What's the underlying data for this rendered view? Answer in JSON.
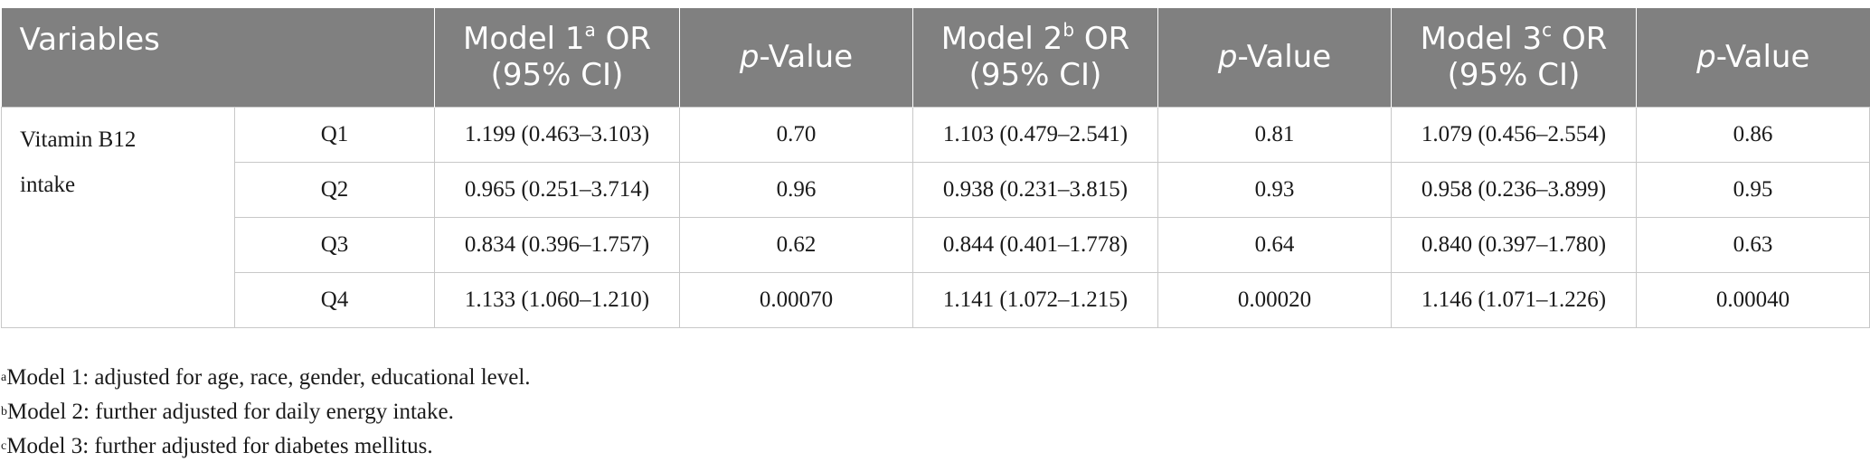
{
  "header": {
    "variables": "Variables",
    "model1": {
      "label": "Model 1",
      "sup": "a",
      "suffix": " OR",
      "ci": "(95% CI)"
    },
    "pvalue_p": "p",
    "pvalue_rest": "-Value",
    "model2": {
      "label": "Model 2",
      "sup": "b",
      "suffix": " OR",
      "ci": "(95% CI)"
    },
    "model3": {
      "label": "Model 3",
      "sup": "c",
      "suffix": " OR",
      "ci": "(95% CI)"
    }
  },
  "variable_label_line1": "Vitamin B12",
  "variable_label_line2": "intake",
  "rows": [
    {
      "quartile": "Q1",
      "m1_or": "1.199 (0.463–3.103)",
      "m1_p": "0.70",
      "m2_or": "1.103 (0.479–2.541)",
      "m2_p": "0.81",
      "m3_or": "1.079 (0.456–2.554)",
      "m3_p": "0.86"
    },
    {
      "quartile": "Q2",
      "m1_or": "0.965 (0.251–3.714)",
      "m1_p": "0.96",
      "m2_or": "0.938 (0.231–3.815)",
      "m2_p": "0.93",
      "m3_or": "0.958 (0.236–3.899)",
      "m3_p": "0.95"
    },
    {
      "quartile": "Q3",
      "m1_or": "0.834 (0.396–1.757)",
      "m1_p": "0.62",
      "m2_or": "0.844 (0.401–1.778)",
      "m2_p": "0.64",
      "m3_or": "0.840 (0.397–1.780)",
      "m3_p": "0.63"
    },
    {
      "quartile": "Q4",
      "m1_or": "1.133 (1.060–1.210)",
      "m1_p": "0.00070",
      "m2_or": "1.141 (1.072–1.215)",
      "m2_p": "0.00020",
      "m3_or": "1.146 (1.071–1.226)",
      "m3_p": "0.00040"
    }
  ],
  "footnotes": [
    {
      "sup": "a",
      "text": "Model 1: adjusted for age, race, gender, educational level."
    },
    {
      "sup": "b",
      "text": "Model 2: further adjusted for daily energy intake."
    },
    {
      "sup": "c",
      "text": "Model 3: further adjusted for diabetes mellitus."
    }
  ],
  "colors": {
    "header_bg": "#808080",
    "header_text": "#ffffff",
    "grid": "#c8c8c8",
    "body_text": "#1a1a1a"
  }
}
